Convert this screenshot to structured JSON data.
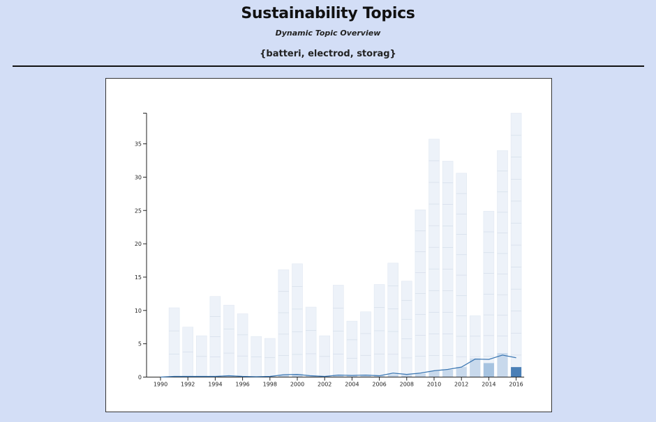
{
  "header": {
    "title": "Sustainability Topics",
    "subtitle": "Dynamic Topic Overview",
    "topic_label": "{batteri, electrod, storag}"
  },
  "colors": {
    "background": "#d3def6",
    "total_bar": "#edf2f9",
    "total_bar_stroke": "#dde5f0",
    "segment_line": "#cfd9e6",
    "topic_bar_dark": "#4a7fb6",
    "topic_bar_mid": "#a6c3e0",
    "topic_bar_light": "#c8d9ec",
    "line": "#3d78b3"
  },
  "chart_data": {
    "type": "bar",
    "years": [
      1990,
      1991,
      1992,
      1993,
      1994,
      1995,
      1996,
      1997,
      1998,
      1999,
      2000,
      2001,
      2002,
      2003,
      2004,
      2005,
      2006,
      2007,
      2008,
      2009,
      2010,
      2011,
      2012,
      2013,
      2014,
      2015,
      2016
    ],
    "x_tick_labels": [
      "1990",
      "1992",
      "1994",
      "1996",
      "1998",
      "2000",
      "2002",
      "2004",
      "2006",
      "2008",
      "2010",
      "2012",
      "2014",
      "2016"
    ],
    "y_ticks": [
      0,
      5,
      10,
      15,
      20,
      25,
      30,
      35
    ],
    "ylim": [
      0,
      39.6
    ],
    "series": [
      {
        "values": [
          0,
          10.4,
          7.5,
          6.2,
          12.1,
          10.8,
          9.5,
          6.1,
          5.8,
          16.1,
          17.0,
          10.5,
          6.2,
          13.8,
          8.4,
          9.8,
          13.9,
          17.1,
          14.4,
          25.1,
          35.7,
          32.4,
          30.6,
          9.2,
          24.9,
          34.0,
          39.6
        ]
      },
      {
        "values": [
          0,
          0.05,
          0.1,
          0.1,
          0.15,
          0.1,
          0.05,
          0.05,
          0.05,
          0.3,
          0.4,
          0.2,
          0.1,
          0.3,
          0.3,
          0.3,
          0.2,
          0.4,
          0.3,
          0.5,
          0.9,
          1.1,
          1.5,
          2.8,
          2.1,
          3.6,
          1.5
        ]
      },
      {
        "values": [
          0,
          0.1,
          0.1,
          0.1,
          0.1,
          0.2,
          0.1,
          0.05,
          0.1,
          0.35,
          0.4,
          0.2,
          0.1,
          0.3,
          0.25,
          0.3,
          0.2,
          0.6,
          0.4,
          0.6,
          0.95,
          1.15,
          1.5,
          2.7,
          2.65,
          3.3,
          2.9
        ]
      }
    ],
    "highlight_shades": {
      "2013": "light",
      "2014": "mid",
      "2015": "light",
      "2016": "dark"
    }
  }
}
